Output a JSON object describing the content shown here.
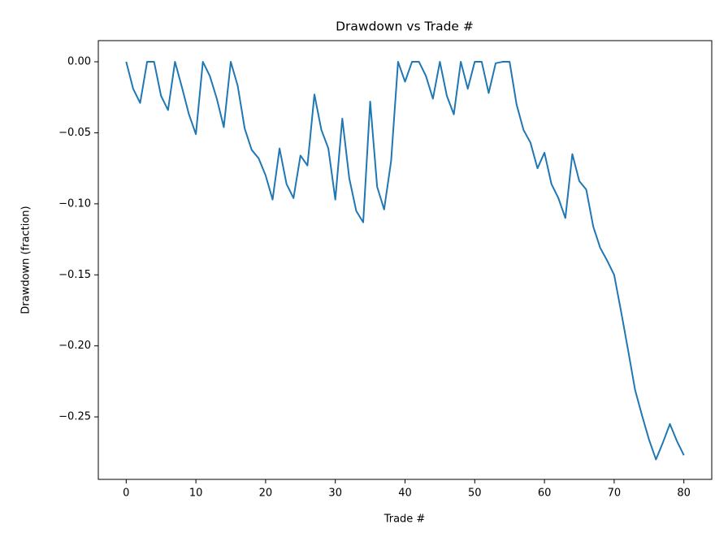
{
  "chart_data": {
    "type": "line",
    "title": "Drawdown vs Trade #",
    "x_label": "Trade #",
    "y_label": "Drawdown (fraction)",
    "x": [
      0,
      1,
      2,
      3,
      4,
      5,
      6,
      7,
      8,
      9,
      10,
      11,
      12,
      13,
      14,
      15,
      16,
      17,
      18,
      19,
      20,
      21,
      22,
      23,
      24,
      25,
      26,
      27,
      28,
      29,
      30,
      31,
      32,
      33,
      34,
      35,
      36,
      37,
      38,
      39,
      40,
      41,
      42,
      43,
      44,
      45,
      46,
      47,
      48,
      49,
      50,
      51,
      52,
      53,
      54,
      55,
      56,
      57,
      58,
      59,
      60,
      61,
      62,
      63,
      64,
      65,
      66,
      67,
      68,
      69,
      70,
      71,
      72,
      73,
      74,
      75,
      76,
      77,
      78,
      79,
      80
    ],
    "series": [
      {
        "color": "#1f77b4",
        "values": [
          0,
          -0.019,
          -0.029,
          0,
          0,
          -0.024,
          -0.034,
          0,
          -0.018,
          -0.037,
          -0.051,
          0,
          -0.01,
          -0.026,
          -0.046,
          0,
          -0.017,
          -0.047,
          -0.062,
          -0.068,
          -0.08,
          -0.097,
          -0.061,
          -0.086,
          -0.096,
          -0.066,
          -0.073,
          -0.023,
          -0.048,
          -0.061,
          -0.097,
          -0.04,
          -0.082,
          -0.105,
          -0.113,
          -0.028,
          -0.088,
          -0.104,
          -0.07,
          0,
          -0.014,
          0,
          0,
          -0.01,
          -0.026,
          0,
          -0.024,
          -0.037,
          0,
          -0.019,
          0,
          0,
          -0.022,
          -0.001,
          0,
          0,
          -0.03,
          -0.048,
          -0.057,
          -0.075,
          -0.064,
          -0.086,
          -0.096,
          -0.11,
          -0.065,
          -0.084,
          -0.09,
          -0.116,
          -0.131,
          -0.14,
          -0.15,
          -0.176,
          -0.203,
          -0.231,
          -0.249,
          -0.266,
          -0.28,
          -0.268,
          -0.255,
          -0.267,
          -0.277
        ]
      }
    ],
    "xlim": [
      -4,
      84
    ],
    "xticks": [
      0,
      10,
      20,
      30,
      40,
      50,
      60,
      70,
      80
    ],
    "ylim": [
      -0.294,
      0.0149
    ],
    "yticks": [
      {
        "value": 0,
        "label": "0.00"
      },
      {
        "value": -0.05,
        "label": "−0.05"
      },
      {
        "value": -0.1,
        "label": "−0.10"
      },
      {
        "value": -0.15,
        "label": "−0.15"
      },
      {
        "value": -0.2,
        "label": "−0.20"
      },
      {
        "value": -0.25,
        "label": "−0.25"
      }
    ],
    "grid": false
  }
}
